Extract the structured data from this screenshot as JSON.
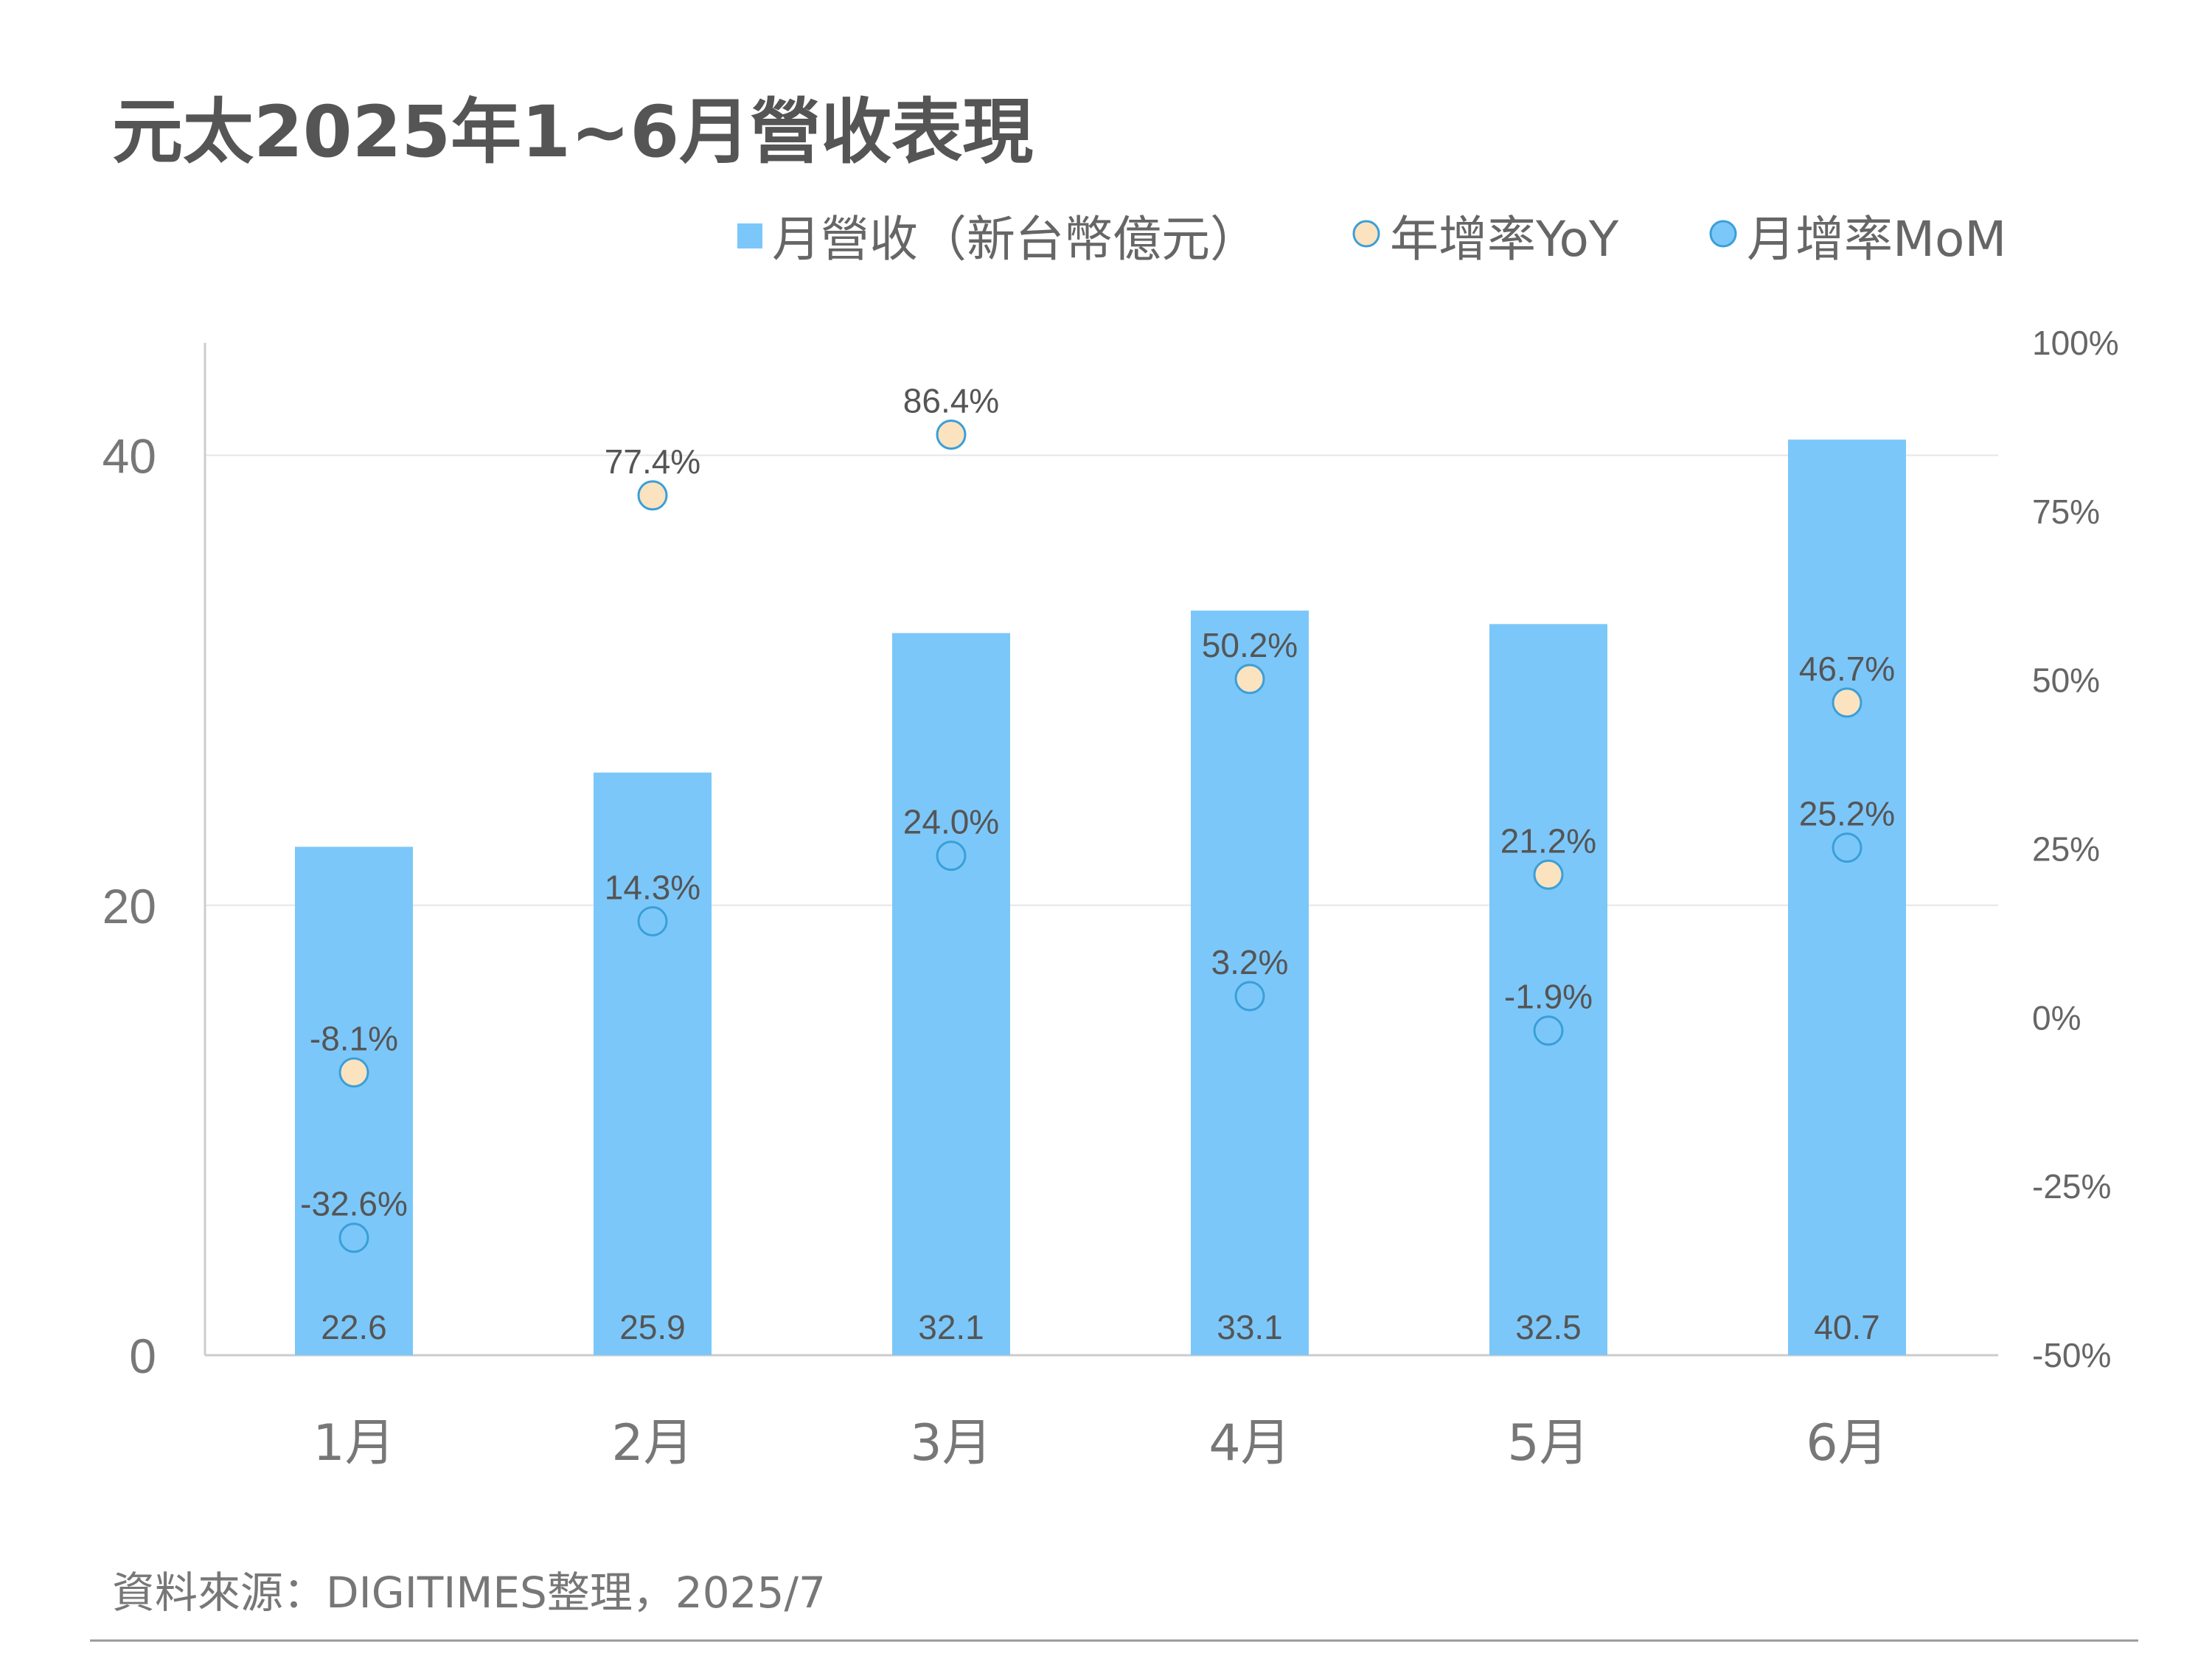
{
  "title": "元太2025年1~6月營收表現",
  "source": "資料來源：DIGITIMES整理，2025/7",
  "legend": {
    "bar_label": "月營收（新台幣億元）",
    "yoy_label": "年增率YoY",
    "mom_label": "月增率MoM"
  },
  "colors": {
    "bar": "#7cc7f9",
    "yoy_fill": "#fbe3c0",
    "mom_fill": "#7cc7f9",
    "marker_stroke": "#3a9fd8",
    "grid": "#e6e6e6",
    "axis": "#cccccc"
  },
  "chart_data": {
    "type": "bar",
    "categories": [
      "1月",
      "2月",
      "3月",
      "4月",
      "5月",
      "6月"
    ],
    "series": [
      {
        "name": "月營收（新台幣億元）",
        "type": "bar",
        "axis": "left",
        "values": [
          22.6,
          25.9,
          32.1,
          33.1,
          32.5,
          40.7
        ],
        "labels": [
          "22.6",
          "25.9",
          "32.1",
          "33.1",
          "32.5",
          "40.7"
        ]
      },
      {
        "name": "年增率YoY",
        "type": "scatter",
        "axis": "right",
        "values": [
          -8.1,
          77.4,
          86.4,
          50.2,
          21.2,
          46.7
        ],
        "labels": [
          "-8.1%",
          "77.4%",
          "86.4%",
          "50.2%",
          "21.2%",
          "46.7%"
        ]
      },
      {
        "name": "月增率MoM",
        "type": "scatter",
        "axis": "right",
        "values": [
          -32.6,
          14.3,
          24.0,
          3.2,
          -1.9,
          25.2
        ],
        "labels": [
          "-32.6%",
          "14.3%",
          "24.0%",
          "3.2%",
          "-1.9%",
          "25.2%"
        ]
      }
    ],
    "y_left": {
      "min": 0,
      "max": 45,
      "ticks": [
        "0",
        "20",
        "40"
      ],
      "tick_values": [
        0,
        20,
        40
      ]
    },
    "y_right": {
      "min": -50,
      "max": 100,
      "ticks": [
        "-50%",
        "-25%",
        "0%",
        "25%",
        "50%",
        "75%",
        "100%"
      ],
      "tick_values": [
        -50,
        -25,
        0,
        25,
        50,
        75,
        100
      ]
    },
    "grid": true,
    "legend_position": "top-right"
  }
}
